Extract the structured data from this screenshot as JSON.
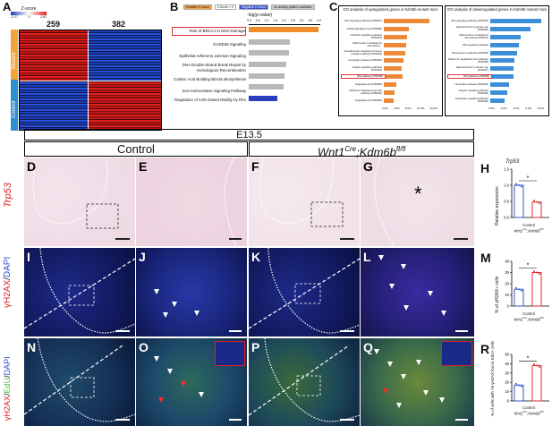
{
  "panels": {
    "A": "A",
    "B": "B",
    "C": "C",
    "D": "D",
    "E": "E",
    "F": "F",
    "G": "G",
    "H": "H",
    "I": "I",
    "J": "J",
    "K": "K",
    "L": "L",
    "M": "M",
    "N": "N",
    "O": "O",
    "P": "P",
    "Q": "Q",
    "R": "R"
  },
  "heatmap": {
    "scale_title": "Z-score",
    "scale_ticks": [
      "-2.27",
      "0",
      "2.62"
    ],
    "col_counts": [
      "259",
      "382"
    ],
    "groups": [
      "Mutant",
      "Control"
    ],
    "colors": {
      "mutant": "#f2a33a",
      "control": "#2e8fd0",
      "up": "#e02020",
      "down": "#1c3db8"
    }
  },
  "ipa": {
    "legend": [
      "Positive Z-Score",
      "Z-Score = 0",
      "Negative Z-Score",
      "no activity pattern available"
    ],
    "axis_label": "-log(p-value)",
    "ticks": [
      "0.0",
      "0.5",
      "1.0",
      "1.5",
      "2.0",
      "2.5",
      "3.0",
      "3.5",
      "4.0"
    ],
    "pathways": [
      "Role of BRCA1 in DNA Damage",
      "GADD45 Signaling",
      "Epithelial Adherens Junction Signaling",
      "DNA Double-Strand Break Repair by Homologous Recombination",
      "Colanic Acid Building Blocks Biosynthesis",
      "Iron Homeostasis Signaling Pathway",
      "Regulation of Actin-based Motility by Rho"
    ]
  },
  "go": {
    "up_title": "GO analysis of upregulated genes in Kdm6b mutant mice",
    "down_title": "GO analysis of downregulated genes in Kdm6b mutant mice",
    "up_terms": [
      "Wnt signaling pathway (P00057)",
      "CCKR signaling map (P06959)",
      "Cadherin signaling pathway (P00012)",
      "Inflammation mediated by chemokine...",
      "Gonadotropin-releasing hormone receptor pathway (P06664)",
      "Huntington disease (P00029)",
      "Integrin signaling pathway (P00034)",
      "p53 pathway (P00059)",
      "Angiogenesis (P00005)",
      "Alzheimer disease-presenilin pathway (P00004)",
      "Angiogenesis (P00005)"
    ],
    "up_ticks": [
      "0.0%",
      "4.0%",
      "8.0%",
      "12.0%",
      "16.0%"
    ],
    "down_terms": [
      "Wnt signaling pathway (P00057)",
      "Heterotrimeric G-protein sig. (P00026)",
      "Inflammation mediated by chemokine (P00031)",
      "Wnt signaling pathway",
      "Vasopressin synthesis (P04395)",
      "Vitamin D metabolism and pathway (P04396)",
      "Heterotrimeric G-protein sig. (P00027)",
      "p53 pathway (P00059)",
      "Huntington disease (P00029)",
      "Integrin signaling pathway (P00034)",
      "Interleukin signaling pathway (P00036)"
    ],
    "down_ticks": [
      "0.0%",
      "2.0%",
      "4.0%",
      "6.0%",
      "8.0%"
    ]
  },
  "stage": "E13.5",
  "conditions": {
    "control": "Control",
    "mutant_gene": "Wnt1",
    "mutant_sup": "Cre",
    "mutant_rest": ";Kdm6b",
    "mutant_sup2": "fl/fl"
  },
  "row_labels": {
    "trp53": "Trp53",
    "gh2ax": "γH2AX",
    "dapi": "DAPI",
    "edu": "EdU",
    "slash": "/"
  },
  "asterisk": "*",
  "bar_charts": {
    "H": {
      "title": "Trp53",
      "ylabel": "Relative expression",
      "yticks": [
        "1.5",
        "1.0",
        "0.5",
        "0.0"
      ],
      "categories": [
        "Control",
        "Wnt1Cre;Kdm6bfl/fl"
      ],
      "cat1": "Control",
      "cat2a": "Wnt1",
      "cat2b": "Cre",
      "cat2c": ";Kdm6b",
      "cat2d": "fl/fl",
      "sig": "*"
    },
    "M": {
      "ylabel": "% of γH2AX+ cells",
      "yticks": [
        "40",
        "30",
        "20",
        "10",
        "0"
      ],
      "sig": "*"
    },
    "R": {
      "ylabel": "% of cells with >5 γH2AX foci in EdU+ cells",
      "yticks": [
        "50",
        "40",
        "30",
        "20",
        "10",
        "0"
      ],
      "cat1": "Control",
      "cat2a": "Wnt1",
      "cat2b": "Cre",
      "cat2c": ";Kdm6b",
      "cat2d": "fl/fl",
      "sig": "*"
    }
  },
  "chart_data": [
    {
      "type": "bar",
      "panel": "H",
      "title": "Trp53",
      "ylabel": "Relative expression",
      "categories": [
        "Control",
        "Wnt1Cre;Kdm6bfl/fl"
      ],
      "values": [
        1.0,
        0.48
      ],
      "ylim": [
        0,
        1.5
      ],
      "colors": [
        "#2f5bd3",
        "#e02b2b"
      ]
    },
    {
      "type": "bar",
      "panel": "M",
      "ylabel": "% of γH2AX+ cells",
      "categories": [
        "Control",
        "Wnt1Cre;Kdm6bfl/fl"
      ],
      "values": [
        15,
        30
      ],
      "ylim": [
        0,
        40
      ],
      "colors": [
        "#2f5bd3",
        "#e02b2b"
      ]
    },
    {
      "type": "bar",
      "panel": "R",
      "ylabel": "% of cells with >5 γH2AX foci in EdU+ cells",
      "categories": [
        "Control",
        "Wnt1Cre;Kdm6bfl/fl"
      ],
      "values": [
        17,
        38
      ],
      "ylim": [
        0,
        50
      ],
      "colors": [
        "#2f5bd3",
        "#e02b2b"
      ]
    },
    {
      "type": "bar",
      "panel": "B",
      "xlabel": "-log(p-value)",
      "categories": [
        "Role of BRCA1 in DNA Damage",
        "GADD45 Signaling",
        "Epithelial Adherens Junction Signaling",
        "DNA Double-Strand Break Repair by Homologous Recombination",
        "Colanic Acid Building Blocks Biosynthesis",
        "Iron Homeostasis Signaling Pathway",
        "Regulation of Actin-based Motility by Rho"
      ],
      "values": [
        3.9,
        2.3,
        2.25,
        2.1,
        2.0,
        1.95,
        1.6
      ],
      "xlim": [
        0,
        4
      ]
    }
  ]
}
